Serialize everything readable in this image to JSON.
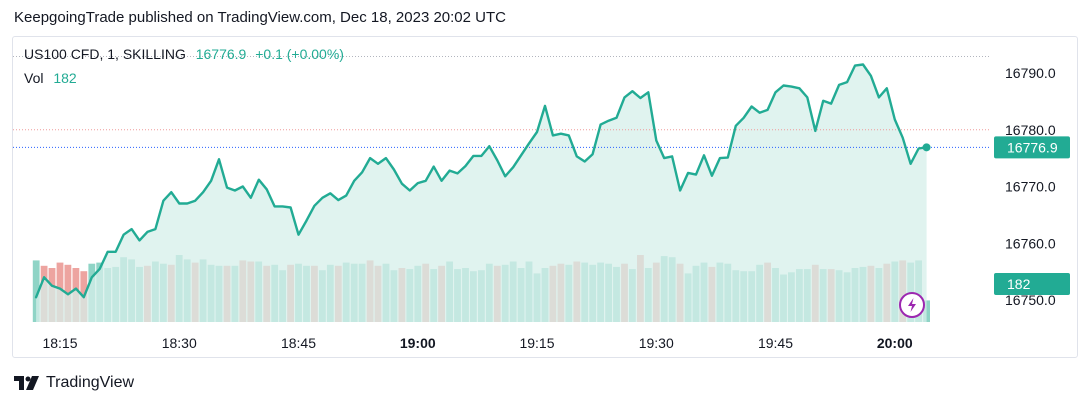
{
  "header": {
    "text": "KeepgoingTrade published on TradingView.com, Dec 18, 2023 20:02 UTC"
  },
  "legend": {
    "symbol": "US100 CFD, 1, SKILLING",
    "price": "16776.9",
    "change": "+0.1 (+0.00%)",
    "vol_label": "Vol",
    "vol_value": "182"
  },
  "footer": {
    "brand": "TradingView"
  },
  "colors": {
    "line": "#22ab94",
    "area": "#d6efea",
    "vol_up": "#8fd4c6",
    "vol_down": "#eda4a0",
    "badge": "#22ab94",
    "lightning": "#9c27b0"
  },
  "chart_data": {
    "type": "area",
    "price_axis": {
      "ticks": [
        "16790.0",
        "16780.0",
        "16770.0",
        "16760.0",
        "16750.0"
      ],
      "range": [
        16747.5,
        16794.0
      ]
    },
    "time_axis": [
      {
        "label": "18:15",
        "bold": false,
        "minute": 15
      },
      {
        "label": "18:30",
        "bold": false,
        "minute": 30
      },
      {
        "label": "18:45",
        "bold": false,
        "minute": 45
      },
      {
        "label": "19:00",
        "bold": true,
        "minute": 60
      },
      {
        "label": "19:15",
        "bold": false,
        "minute": 75
      },
      {
        "label": "19:30",
        "bold": false,
        "minute": 90
      },
      {
        "label": "19:45",
        "bold": false,
        "minute": 105
      },
      {
        "label": "20:00",
        "bold": true,
        "minute": 120
      }
    ],
    "start_minute": 12,
    "last_price_label": "16776.9",
    "last_volume_label": "182",
    "price_series": [
      16750.5,
      16754.0,
      16752.5,
      16752.0,
      16751.0,
      16752.0,
      16750.5,
      16754.0,
      16755.5,
      16758.5,
      16758.5,
      16761.5,
      16762.5,
      16760.5,
      16762.0,
      16762.5,
      16767.5,
      16769.0,
      16767.0,
      16767.0,
      16767.5,
      16769.0,
      16771.0,
      16774.8,
      16769.8,
      16769.3,
      16770.0,
      16768.0,
      16771.2,
      16769.5,
      16766.5,
      16766.5,
      16766.3,
      16761.5,
      16764.0,
      16766.6,
      16768.0,
      16768.8,
      16767.6,
      16768.4,
      16771.0,
      16772.5,
      16775.0,
      16774.0,
      16775.0,
      16773.0,
      16770.5,
      16769.3,
      16770.6,
      16771.0,
      16773.5,
      16771.0,
      16772.8,
      16772.3,
      16773.6,
      16775.4,
      16775.4,
      16777.1,
      16774.6,
      16771.8,
      16773.4,
      16775.5,
      16777.6,
      16779.6,
      16784.2,
      16779.0,
      16779.3,
      16779.0,
      16775.3,
      16774.4,
      16775.7,
      16780.9,
      16781.6,
      16782.1,
      16785.7,
      16786.8,
      16785.6,
      16786.6,
      16778.1,
      16775.0,
      16775.3,
      16769.3,
      16772.4,
      16772.1,
      16775.5,
      16771.9,
      16775.0,
      16775.1,
      16780.7,
      16782.1,
      16784.1,
      16783.0,
      16783.5,
      16786.6,
      16787.8,
      16787.6,
      16787.3,
      16785.7,
      16779.8,
      16785.1,
      16784.6,
      16787.9,
      16788.4,
      16791.3,
      16791.5,
      16789.5,
      16785.7,
      16787.3,
      16781.8,
      16778.6,
      16774.0,
      16776.7,
      16776.9
    ],
    "volume_series": [
      5.7,
      5.2,
      5.0,
      5.5,
      5.3,
      5.0,
      4.7,
      5.4,
      5.5,
      5.0,
      5.1,
      6.0,
      5.8,
      5.1,
      5.2,
      5.6,
      5.4,
      5.3,
      6.2,
      5.8,
      5.5,
      5.8,
      5.3,
      5.2,
      5.2,
      5.2,
      5.7,
      5.6,
      5.6,
      5.2,
      5.3,
      4.8,
      5.3,
      5.4,
      5.2,
      5.2,
      4.8,
      5.3,
      5.2,
      5.5,
      5.4,
      5.4,
      5.7,
      5.2,
      5.4,
      4.8,
      5.0,
      4.9,
      5.2,
      5.4,
      4.9,
      5.2,
      5.6,
      4.9,
      5.0,
      4.7,
      4.8,
      5.4,
      5.2,
      5.3,
      5.6,
      5.0,
      5.6,
      4.5,
      5.0,
      5.2,
      5.4,
      5.3,
      5.6,
      5.5,
      5.3,
      5.5,
      5.4,
      5.1,
      5.4,
      4.9,
      6.2,
      5.0,
      5.5,
      6.1,
      6.0,
      5.4,
      4.5,
      5.2,
      5.5,
      5.1,
      5.5,
      5.4,
      4.8,
      4.7,
      4.7,
      5.3,
      5.5,
      5.0,
      4.4,
      4.6,
      4.9,
      4.9,
      5.3,
      4.9,
      4.9,
      4.8,
      4.6,
      5.0,
      5.1,
      5.2,
      5.0,
      5.4,
      5.6,
      5.7,
      5.5,
      5.7,
      2.0
    ],
    "volume_up": [
      true,
      false,
      false,
      false,
      false,
      false,
      false,
      true,
      true,
      true,
      true,
      true,
      true,
      true,
      false,
      true,
      true,
      false,
      true,
      true,
      false,
      true,
      true,
      true,
      false,
      true,
      false,
      false,
      true,
      false,
      true,
      true,
      false,
      true,
      true,
      false,
      true,
      true,
      false,
      true,
      true,
      true,
      false,
      false,
      true,
      true,
      false,
      true,
      true,
      false,
      true,
      false,
      true,
      true,
      true,
      true,
      true,
      true,
      false,
      true,
      true,
      true,
      true,
      true,
      true,
      false,
      false,
      true,
      false,
      true,
      true,
      true,
      true,
      true,
      false,
      true,
      false,
      true,
      false,
      true,
      true,
      false,
      true,
      true,
      true,
      false,
      true,
      true,
      true,
      true,
      true,
      true,
      false,
      true,
      true,
      true,
      true,
      true,
      false,
      true,
      false,
      true,
      true,
      true,
      true,
      false,
      true,
      false,
      true,
      false,
      true,
      true,
      true
    ]
  }
}
